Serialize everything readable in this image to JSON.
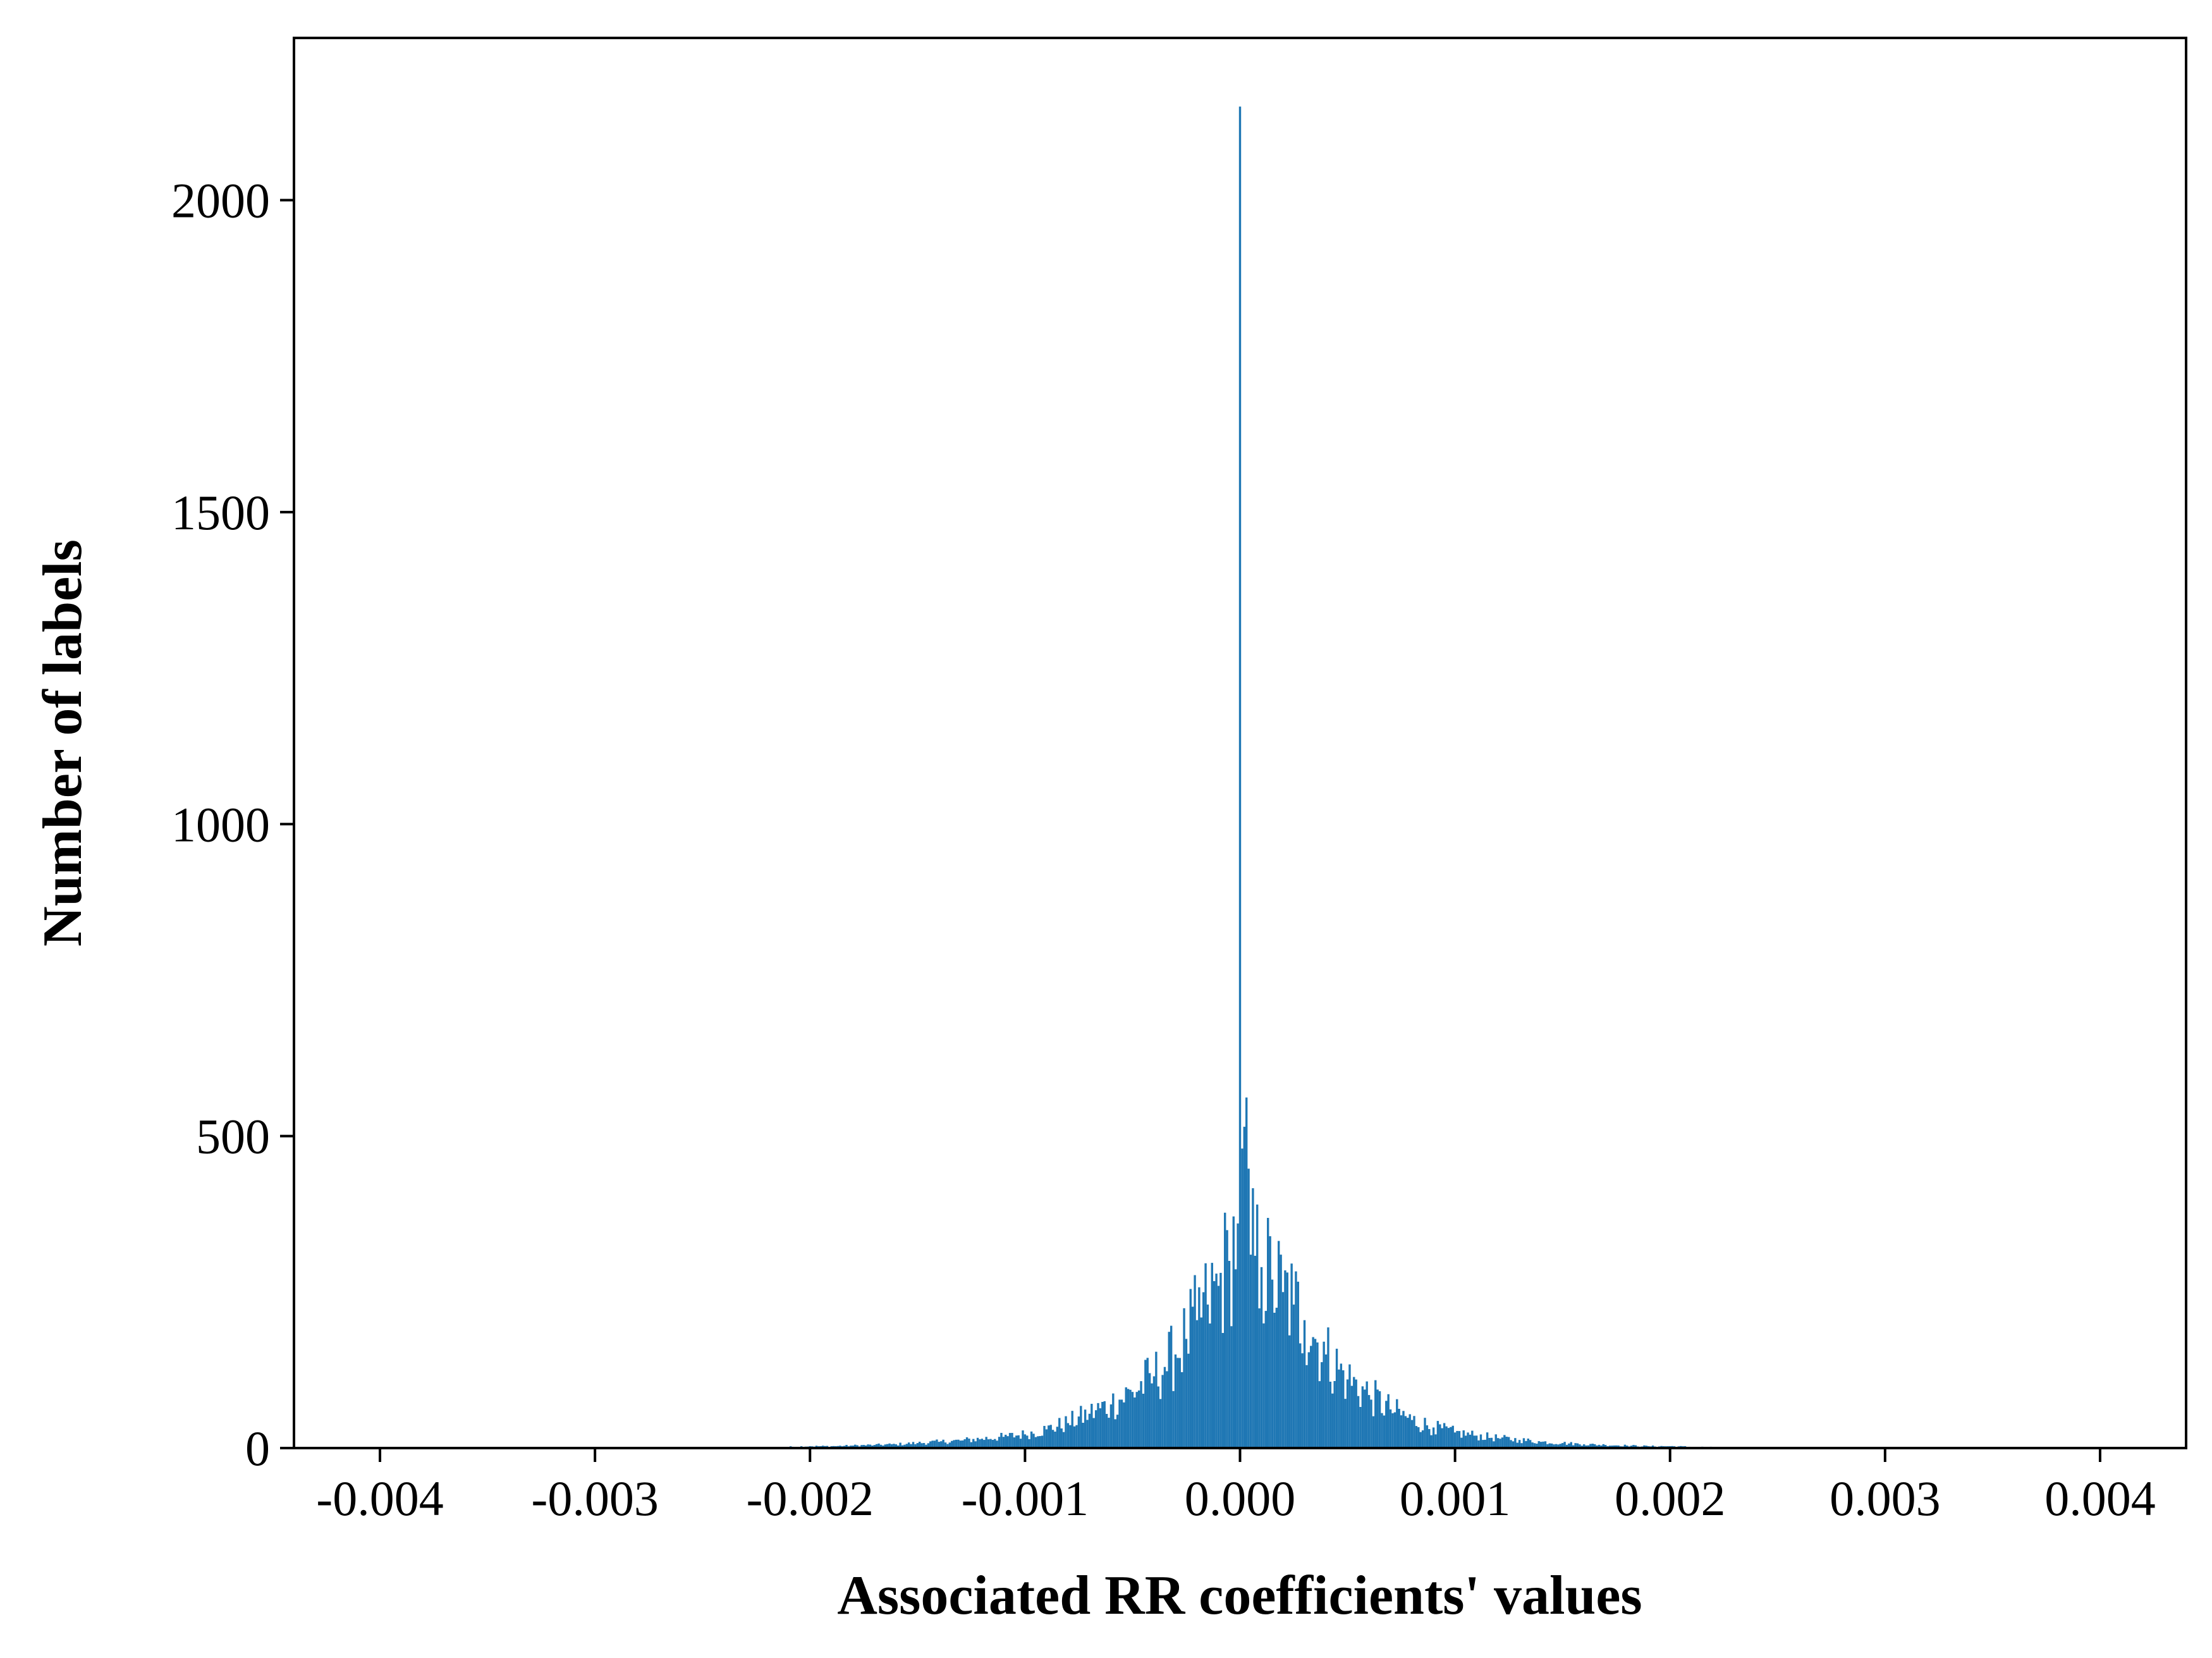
{
  "chart_data": {
    "type": "bar",
    "xlabel": "Associated RR coefficients' values",
    "ylabel": "Number of labels",
    "xlim": [
      -0.0044,
      0.0044
    ],
    "ylim": [
      0,
      2260
    ],
    "x_ticks": [
      -0.004,
      -0.003,
      -0.002,
      -0.001,
      0.0,
      0.001,
      0.002,
      0.003,
      0.004
    ],
    "x_tick_labels": [
      "-0.004",
      "-0.003",
      "-0.002",
      "-0.001",
      "0.000",
      "0.001",
      "0.002",
      "0.003",
      "0.004"
    ],
    "y_ticks": [
      0,
      500,
      1000,
      1500,
      2000
    ],
    "y_tick_labels": [
      "0",
      "500",
      "1000",
      "1500",
      "2000"
    ],
    "grid": false,
    "legend": "none",
    "bar_color": "#1f77b4",
    "bin_range": [
      -0.0027,
      0.0027
    ],
    "bin_width": 1e-05,
    "series": [
      {
        "values_by_x": [
          [
            -0.0027,
            1
          ],
          [
            -0.0025,
            1
          ],
          [
            -0.0023,
            1
          ],
          [
            -0.0021,
            2
          ],
          [
            -0.002,
            3
          ],
          [
            -0.0019,
            3
          ],
          [
            -0.0018,
            4
          ],
          [
            -0.0017,
            5
          ],
          [
            -0.0016,
            6
          ],
          [
            -0.0015,
            8
          ],
          [
            -0.0014,
            10
          ],
          [
            -0.0013,
            12
          ],
          [
            -0.0012,
            15
          ],
          [
            -0.0011,
            18
          ],
          [
            -0.001,
            22
          ],
          [
            -0.0009,
            30
          ],
          [
            -0.0008,
            40
          ],
          [
            -0.0007,
            55
          ],
          [
            -0.0006,
            70
          ],
          [
            -0.0005,
            90
          ],
          [
            -0.0004,
            115
          ],
          [
            -0.00035,
            130
          ],
          [
            -0.0003,
            150
          ],
          [
            -0.00025,
            175
          ],
          [
            -0.0002,
            205
          ],
          [
            -0.00015,
            230
          ],
          [
            -0.0001,
            260
          ],
          [
            -5e-05,
            300
          ],
          [
            -1e-05,
            360
          ],
          [
            0.0,
            2150
          ],
          [
            1e-05,
            480
          ],
          [
            2e-05,
            515
          ],
          [
            5e-05,
            310
          ],
          [
            0.0001,
            290
          ],
          [
            0.00015,
            270
          ],
          [
            0.0002,
            250
          ],
          [
            0.00025,
            230
          ],
          [
            0.0003,
            205
          ],
          [
            0.00035,
            175
          ],
          [
            0.0004,
            150
          ],
          [
            0.0005,
            110
          ],
          [
            0.0006,
            85
          ],
          [
            0.0007,
            62
          ],
          [
            0.0008,
            45
          ],
          [
            0.0009,
            33
          ],
          [
            0.001,
            25
          ],
          [
            0.0011,
            20
          ],
          [
            0.0012,
            16
          ],
          [
            0.0013,
            13
          ],
          [
            0.0014,
            10
          ],
          [
            0.0015,
            8
          ],
          [
            0.0016,
            6
          ],
          [
            0.0017,
            5
          ],
          [
            0.0018,
            4
          ],
          [
            0.0019,
            3
          ],
          [
            0.002,
            3
          ],
          [
            0.0021,
            2
          ],
          [
            0.0023,
            1
          ],
          [
            0.0025,
            1
          ],
          [
            0.0027,
            1
          ]
        ]
      }
    ]
  }
}
